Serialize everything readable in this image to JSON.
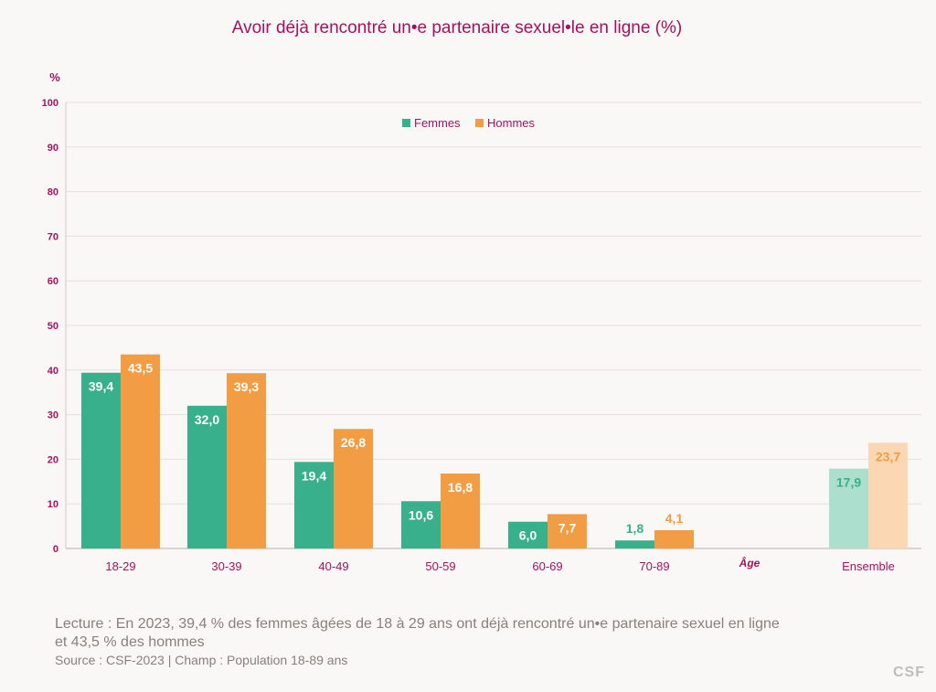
{
  "chart_data": {
    "type": "bar",
    "title": "Avoir déjà rencontré un•e partenaire sexuel•le en ligne (%)",
    "ylabel": "%",
    "xlabel": "Âge",
    "ylim": [
      0,
      100
    ],
    "yticks": [
      0,
      10,
      20,
      30,
      40,
      50,
      60,
      70,
      80,
      90,
      100
    ],
    "grid": true,
    "legend": "top-center",
    "categories": [
      "18-29",
      "30-39",
      "40-49",
      "50-59",
      "60-69",
      "70-89",
      "Ensemble"
    ],
    "series": [
      {
        "name": "Femmes",
        "color": "#38b08b",
        "light_color": "#acdfcd",
        "values": [
          39.4,
          32.0,
          19.4,
          10.6,
          6.0,
          1.8,
          17.9
        ],
        "labels": [
          "39,4",
          "32,0",
          "19,4",
          "10,6",
          "6,0",
          "1,8",
          "17,9"
        ]
      },
      {
        "name": "Hommes",
        "color": "#f29d43",
        "light_color": "#fbd7b3",
        "values": [
          43.5,
          39.3,
          26.8,
          16.8,
          7.7,
          4.1,
          23.7
        ],
        "labels": [
          "43,5",
          "39,3",
          "26,8",
          "16,8",
          "7,7",
          "4,1",
          "23,7"
        ]
      }
    ]
  },
  "footer": {
    "reading_line1": "Lecture :  En 2023, 39,4 % des femmes âgées de 18 à 29 ans ont déjà rencontré un•e partenaire  sexuel en ligne",
    "reading_line2": "et 43,5 % des hommes",
    "source": "Source : CSF-2023  |  Champ : Population 18-89 ans"
  },
  "brand": "CSF",
  "colors": {
    "title": "#a3125c",
    "axis_text": "#a3125c",
    "footer_text": "#8a7f7a"
  }
}
